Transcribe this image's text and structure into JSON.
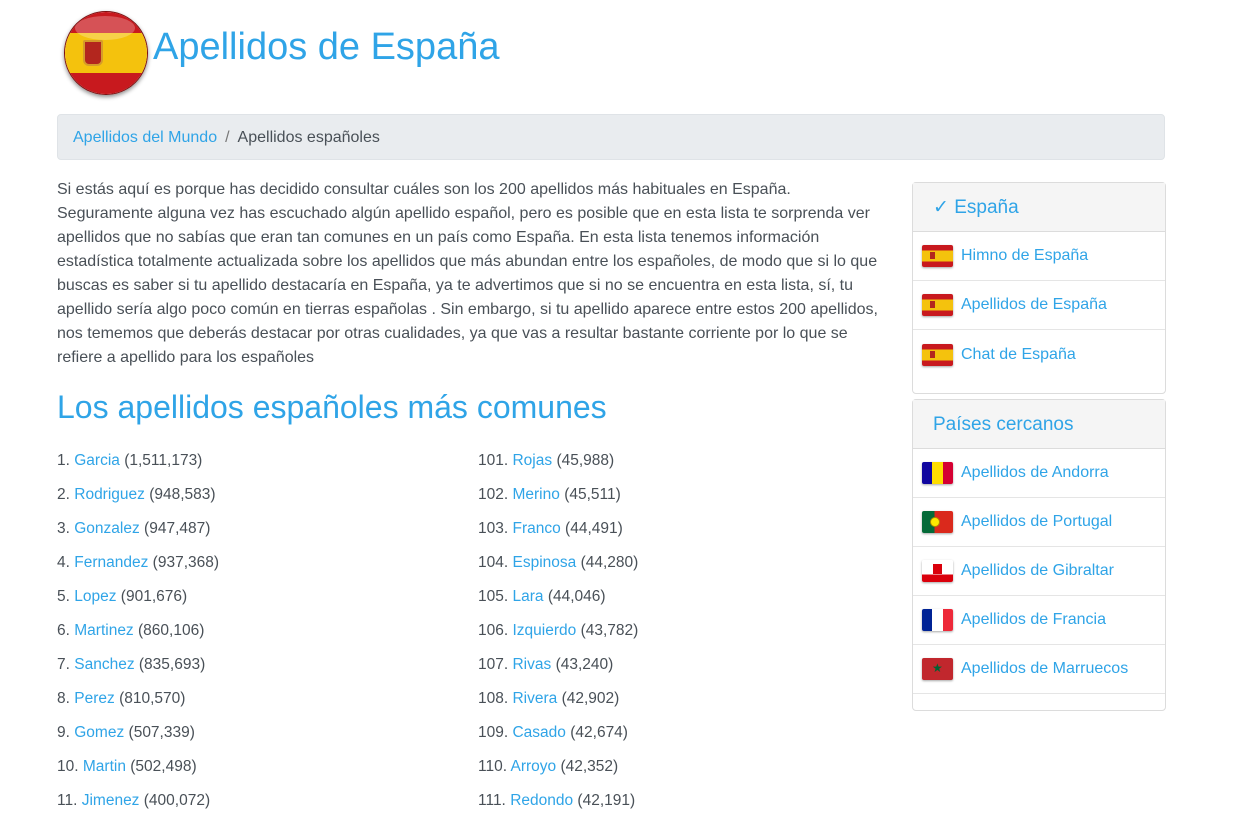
{
  "header": {
    "title": "Apellidos de España",
    "logo": "spain-flag-logo"
  },
  "breadcrumb": {
    "home": "Apellidos del Mundo",
    "separator": "/",
    "current": "Apellidos españoles"
  },
  "intro": "Si estás aquí es porque has decidido consultar cuáles son los 200 apellidos más habituales en España. Seguramente alguna vez has escuchado algún apellido español, pero es posible que en esta lista te sorprenda ver apellidos que no sabías que eran tan comunes en un país como España. En esta lista tenemos información estadística totalmente actualizada sobre los apellidos que más abundan entre los españoles, de modo que si lo que buscas es saber si tu apellido destacaría en España, ya te advertimos que si no se encuentra en esta lista, sí, tu apellido sería algo poco común en tierras españolas . Sin embargo, si tu apellido aparece entre estos 200 apellidos, nos tememos que deberás destacar por otras cualidades, ya que vas a resultar bastante corriente por lo que se refiere a apellido para los españoles",
  "section_title": "Los apellidos españoles más comunes",
  "surnames_left": [
    {
      "rank": "1.",
      "name": "Garcia",
      "count": "(1,511,173)"
    },
    {
      "rank": "2.",
      "name": "Rodriguez",
      "count": "(948,583)"
    },
    {
      "rank": "3.",
      "name": "Gonzalez",
      "count": "(947,487)"
    },
    {
      "rank": "4.",
      "name": "Fernandez",
      "count": "(937,368)"
    },
    {
      "rank": "5.",
      "name": "Lopez",
      "count": "(901,676)"
    },
    {
      "rank": "6.",
      "name": "Martinez",
      "count": "(860,106)"
    },
    {
      "rank": "7.",
      "name": "Sanchez",
      "count": "(835,693)"
    },
    {
      "rank": "8.",
      "name": "Perez",
      "count": "(810,570)"
    },
    {
      "rank": "9.",
      "name": "Gomez",
      "count": "(507,339)"
    },
    {
      "rank": "10.",
      "name": "Martin",
      "count": "(502,498)"
    },
    {
      "rank": "11.",
      "name": "Jimenez",
      "count": "(400,072)"
    }
  ],
  "surnames_right": [
    {
      "rank": "101.",
      "name": "Rojas",
      "count": "(45,988)"
    },
    {
      "rank": "102.",
      "name": "Merino",
      "count": "(45,511)"
    },
    {
      "rank": "103.",
      "name": "Franco",
      "count": "(44,491)"
    },
    {
      "rank": "104.",
      "name": "Espinosa",
      "count": "(44,280)"
    },
    {
      "rank": "105.",
      "name": "Lara",
      "count": "(44,046)"
    },
    {
      "rank": "106.",
      "name": "Izquierdo",
      "count": "(43,782)"
    },
    {
      "rank": "107.",
      "name": "Rivas",
      "count": "(43,240)"
    },
    {
      "rank": "108.",
      "name": "Rivera",
      "count": "(42,902)"
    },
    {
      "rank": "109.",
      "name": "Casado",
      "count": "(42,674)"
    },
    {
      "rank": "110.",
      "name": "Arroyo",
      "count": "(42,352)"
    },
    {
      "rank": "111.",
      "name": "Redondo",
      "count": "(42,191)"
    }
  ],
  "sidebar": {
    "country_panel": {
      "title": "✓ España",
      "items": [
        {
          "label": "Himno de España",
          "flag": "spain-flag-icon"
        },
        {
          "label": "Apellidos de España",
          "flag": "spain-flag-icon"
        },
        {
          "label": "Chat de España",
          "flag": "spain-flag-icon"
        }
      ]
    },
    "nearby_panel": {
      "title": "Países cercanos",
      "items": [
        {
          "label": "Apellidos de Andorra",
          "flag": "andorra-flag-icon"
        },
        {
          "label": "Apellidos de Portugal",
          "flag": "portugal-flag-icon"
        },
        {
          "label": "Apellidos de Gibraltar",
          "flag": "gibraltar-flag-icon"
        },
        {
          "label": "Apellidos de Francia",
          "flag": "france-flag-icon"
        },
        {
          "label": "Apellidos de Marruecos",
          "flag": "morocco-flag-icon"
        }
      ]
    }
  },
  "colors": {
    "accent": "#2fa4e7",
    "text": "#495057",
    "breadcrumb_bg": "#e9ecef"
  }
}
